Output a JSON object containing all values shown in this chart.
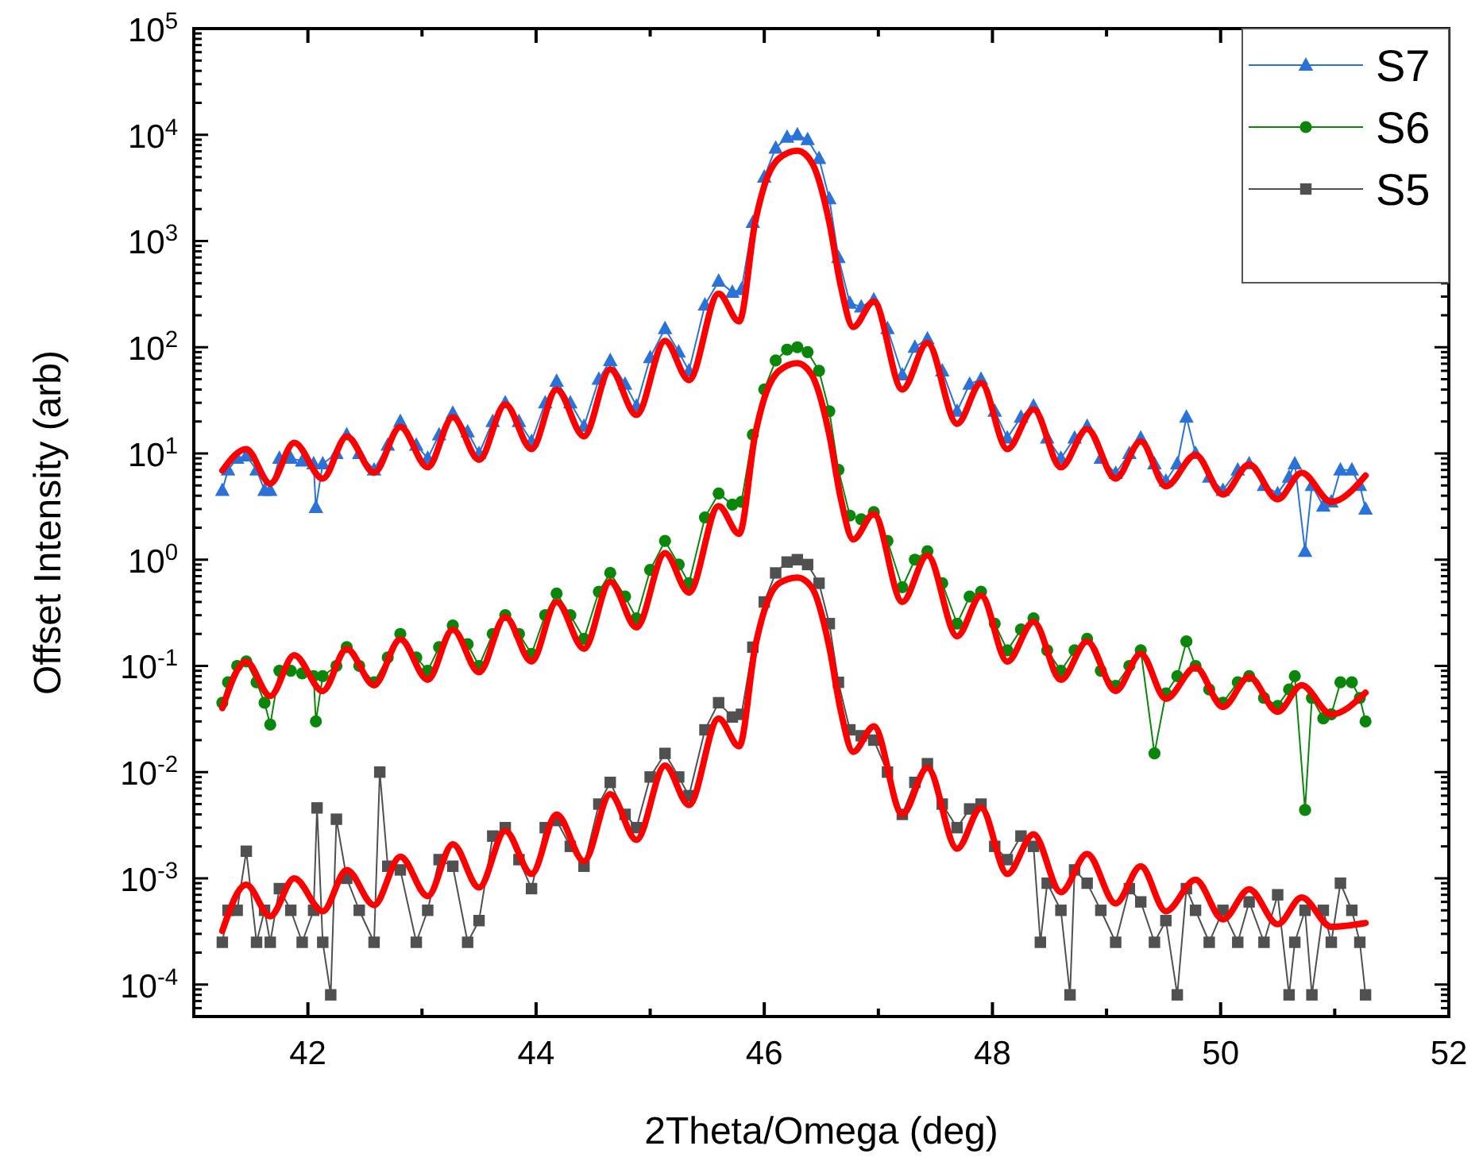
{
  "chart_data": {
    "type": "line",
    "xlabel": "2Theta/Omega (deg)",
    "ylabel": "Offset Intensity (arb)",
    "log": "y",
    "legend": "top right",
    "xlim": [
      41,
      52
    ],
    "ylim": [
      5e-05,
      100000.0
    ],
    "xticks": [
      42,
      {
        "value": 43,
        "label": null
      },
      44,
      {
        "value": 45,
        "label": null
      },
      46,
      {
        "value": 47,
        "label": null
      },
      48,
      {
        "value": 49,
        "label": null
      },
      50,
      {
        "value": 51,
        "label": null
      },
      52
    ],
    "yticks": [
      {
        "value": 6e-05,
        "label": null
      },
      {
        "value": 7e-05,
        "label": null
      },
      {
        "value": 8e-05,
        "label": null
      },
      {
        "value": 9e-05,
        "label": null
      },
      {
        "value": 0.0001,
        "label": "10$^{-4}$"
      },
      {
        "value": 0.0002,
        "label": null
      },
      {
        "value": 0.0003,
        "label": null
      },
      {
        "value": 0.0004,
        "label": null
      },
      {
        "value": 0.0005,
        "label": null
      },
      {
        "value": 0.0006,
        "label": null
      },
      {
        "value": 0.0007,
        "label": null
      },
      {
        "value": 0.0008,
        "label": null
      },
      {
        "value": 0.0009,
        "label": null
      },
      {
        "value": 0.001,
        "label": "10$^{-3}$"
      },
      {
        "value": 0.002,
        "label": null
      },
      {
        "value": 0.003,
        "label": null
      },
      {
        "value": 0.004,
        "label": null
      },
      {
        "value": 0.005,
        "label": null
      },
      {
        "value": 0.006,
        "label": null
      },
      {
        "value": 0.007,
        "label": null
      },
      {
        "value": 0.008,
        "label": null
      },
      {
        "value": 0.009,
        "label": null
      },
      {
        "value": 0.01,
        "label": "10$^{-2}$"
      },
      {
        "value": 0.02,
        "label": null
      },
      {
        "value": 0.03,
        "label": null
      },
      {
        "value": 0.04,
        "label": null
      },
      {
        "value": 0.05,
        "label": null
      },
      {
        "value": 0.06,
        "label": null
      },
      {
        "value": 0.07,
        "label": null
      },
      {
        "value": 0.08,
        "label": null
      },
      {
        "value": 0.09,
        "label": null
      },
      {
        "value": 0.1,
        "label": "10$^{-1}$"
      },
      {
        "value": 0.2,
        "label": null
      },
      {
        "value": 0.3,
        "label": null
      },
      {
        "value": 0.4,
        "label": null
      },
      {
        "value": 0.5,
        "label": null
      },
      {
        "value": 0.6,
        "label": null
      },
      {
        "value": 0.7,
        "label": null
      },
      {
        "value": 0.8,
        "label": null
      },
      {
        "value": 0.9,
        "label": null
      },
      {
        "value": 1,
        "label": "10$^{0}$"
      },
      {
        "value": 2,
        "label": null
      },
      {
        "value": 3,
        "label": null
      },
      {
        "value": 4,
        "label": null
      },
      {
        "value": 5,
        "label": null
      },
      {
        "value": 6,
        "label": null
      },
      {
        "value": 7,
        "label": null
      },
      {
        "value": 8,
        "label": null
      },
      {
        "value": 9,
        "label": null
      },
      {
        "value": 10,
        "label": "10$^{1}$"
      },
      {
        "value": 20,
        "label": null
      },
      {
        "value": 30,
        "label": null
      },
      {
        "value": 40,
        "label": null
      },
      {
        "value": 50,
        "label": null
      },
      {
        "value": 60,
        "label": null
      },
      {
        "value": 70,
        "label": null
      },
      {
        "value": 80,
        "label": null
      },
      {
        "value": 90,
        "label": null
      },
      {
        "value": 100,
        "label": "10$^{2}$"
      },
      {
        "value": 200,
        "label": null
      },
      {
        "value": 300,
        "label": null
      },
      {
        "value": 400,
        "label": null
      },
      {
        "value": 500,
        "label": null
      },
      {
        "value": 600,
        "label": null
      },
      {
        "value": 700,
        "label": null
      },
      {
        "value": 800,
        "label": null
      },
      {
        "value": 900,
        "label": null
      },
      {
        "value": 1000,
        "label": "10$^{3}$"
      },
      {
        "value": 2000,
        "label": null
      },
      {
        "value": 3000,
        "label": null
      },
      {
        "value": 4000,
        "label": null
      },
      {
        "value": 5000,
        "label": null
      },
      {
        "value": 6000,
        "label": null
      },
      {
        "value": 7000,
        "label": null
      },
      {
        "value": 8000,
        "label": null
      },
      {
        "value": 9000,
        "label": null
      },
      {
        "value": 10000,
        "label": "10$^{4}$"
      },
      {
        "value": 20000,
        "label": null
      },
      {
        "value": 30000,
        "label": null
      },
      {
        "value": 40000,
        "label": null
      },
      {
        "value": 50000,
        "label": null
      },
      {
        "value": 60000,
        "label": null
      },
      {
        "value": 70000,
        "label": null
      },
      {
        "value": 80000,
        "label": null
      },
      {
        "value": 90000,
        "label": null
      },
      {
        "value": 100000,
        "label": "10$^{5}$"
      }
    ],
    "series": [
      {
        "name": "S7",
        "color": "#2a72d8",
        "marker": "triangle",
        "x": [
          41.25,
          41.3,
          41.38,
          41.46,
          41.55,
          41.62,
          41.67,
          41.75,
          41.85,
          41.95,
          42.05,
          42.07,
          42.13,
          42.25,
          42.34,
          42.45,
          42.58,
          42.7,
          42.81,
          42.95,
          43.05,
          43.15,
          43.27,
          43.4,
          43.5,
          43.62,
          43.73,
          43.85,
          43.96,
          44.08,
          44.18,
          44.3,
          44.42,
          44.55,
          44.65,
          44.78,
          44.88,
          45.0,
          45.13,
          45.25,
          45.34,
          45.48,
          45.6,
          45.72,
          45.8,
          45.9,
          46.0,
          46.1,
          46.2,
          46.29,
          46.38,
          46.48,
          46.57,
          46.65,
          46.75,
          46.85,
          46.96,
          47.08,
          47.21,
          47.32,
          47.43,
          47.56,
          47.69,
          47.8,
          47.9,
          48.02,
          48.13,
          48.25,
          48.36,
          48.48,
          48.6,
          48.72,
          48.83,
          48.95,
          49.08,
          49.2,
          49.3,
          49.42,
          49.52,
          49.62,
          49.7,
          49.78,
          49.9,
          50.02,
          50.15,
          50.25,
          50.38,
          50.5,
          50.6,
          50.65,
          50.74,
          50.8,
          50.9,
          50.97,
          51.05,
          51.15,
          51.22,
          51.27
        ],
        "values": [
          4.5,
          7,
          9,
          9.5,
          7,
          4.5,
          4.5,
          9,
          9,
          8.5,
          8,
          3.1,
          8,
          10,
          15,
          10,
          7,
          12,
          20,
          12,
          9,
          15,
          24,
          16,
          10,
          20,
          30,
          20,
          13,
          30,
          48,
          30,
          18,
          50,
          75,
          45,
          28,
          80,
          150,
          90,
          60,
          250,
          420,
          330,
          350,
          1500,
          4000,
          7500,
          9500,
          10000,
          9000,
          6000,
          2500,
          700,
          260,
          240,
          280,
          150,
          55,
          100,
          120,
          60,
          25,
          45,
          50,
          25,
          14,
          22,
          28,
          14,
          9,
          14,
          18,
          9,
          6.5,
          10,
          14,
          8,
          5.5,
          8,
          22,
          10,
          6,
          4.5,
          7,
          8,
          5,
          4.2,
          6,
          8,
          1.2,
          5,
          3.2,
          3.5,
          7,
          7,
          5,
          3
        ]
      },
      {
        "name": "S6",
        "color": "#0a860a",
        "marker": "circle",
        "x": [
          41.25,
          41.3,
          41.38,
          41.46,
          41.55,
          41.62,
          41.67,
          41.75,
          41.85,
          41.95,
          42.05,
          42.07,
          42.13,
          42.25,
          42.34,
          42.45,
          42.58,
          42.7,
          42.81,
          42.95,
          43.05,
          43.15,
          43.27,
          43.4,
          43.5,
          43.62,
          43.73,
          43.85,
          43.96,
          44.08,
          44.18,
          44.3,
          44.42,
          44.55,
          44.65,
          44.78,
          44.88,
          45.0,
          45.13,
          45.25,
          45.34,
          45.48,
          45.6,
          45.72,
          45.8,
          45.9,
          46.0,
          46.1,
          46.2,
          46.29,
          46.38,
          46.48,
          46.57,
          46.65,
          46.75,
          46.85,
          46.96,
          47.08,
          47.21,
          47.32,
          47.43,
          47.56,
          47.69,
          47.8,
          47.9,
          48.02,
          48.13,
          48.25,
          48.36,
          48.48,
          48.6,
          48.72,
          48.83,
          48.95,
          49.08,
          49.2,
          49.3,
          49.42,
          49.52,
          49.62,
          49.7,
          49.78,
          49.9,
          50.02,
          50.15,
          50.25,
          50.38,
          50.5,
          50.6,
          50.65,
          50.74,
          50.8,
          50.9,
          50.97,
          51.05,
          51.15,
          51.22,
          51.27
        ],
        "values": [
          0.045,
          0.07,
          0.1,
          0.11,
          0.07,
          0.045,
          0.028,
          0.09,
          0.09,
          0.085,
          0.08,
          0.03,
          0.08,
          0.1,
          0.15,
          0.1,
          0.07,
          0.12,
          0.2,
          0.12,
          0.09,
          0.15,
          0.24,
          0.16,
          0.1,
          0.2,
          0.3,
          0.2,
          0.13,
          0.3,
          0.48,
          0.3,
          0.18,
          0.5,
          0.75,
          0.45,
          0.28,
          0.8,
          1.5,
          0.9,
          0.6,
          2.5,
          4.2,
          3.3,
          3.5,
          15,
          40,
          75,
          95,
          100,
          90,
          60,
          25,
          7,
          2.6,
          2.4,
          2.8,
          1.5,
          0.55,
          1,
          1.2,
          0.6,
          0.25,
          0.45,
          0.5,
          0.25,
          0.14,
          0.22,
          0.28,
          0.14,
          0.09,
          0.14,
          0.18,
          0.09,
          0.065,
          0.1,
          0.14,
          0.015,
          0.055,
          0.08,
          0.17,
          0.1,
          0.06,
          0.045,
          0.07,
          0.08,
          0.05,
          0.042,
          0.06,
          0.08,
          0.0044,
          0.05,
          0.032,
          0.035,
          0.07,
          0.07,
          0.05,
          0.03
        ]
      },
      {
        "name": "S5",
        "color": "#505050",
        "marker": "square",
        "x": [
          41.25,
          41.3,
          41.38,
          41.46,
          41.55,
          41.62,
          41.67,
          41.75,
          41.85,
          41.95,
          42.05,
          42.08,
          42.13,
          42.2,
          42.25,
          42.34,
          42.45,
          42.58,
          42.63,
          42.7,
          42.81,
          42.95,
          43.05,
          43.15,
          43.27,
          43.4,
          43.5,
          43.62,
          43.73,
          43.85,
          43.96,
          44.08,
          44.18,
          44.3,
          44.42,
          44.55,
          44.65,
          44.78,
          44.88,
          45.0,
          45.13,
          45.25,
          45.34,
          45.48,
          45.6,
          45.72,
          45.8,
          45.9,
          46.0,
          46.1,
          46.2,
          46.29,
          46.38,
          46.48,
          46.57,
          46.65,
          46.75,
          46.85,
          46.96,
          47.08,
          47.21,
          47.32,
          47.43,
          47.56,
          47.69,
          47.8,
          47.9,
          48.02,
          48.13,
          48.25,
          48.36,
          48.42,
          48.48,
          48.6,
          48.68,
          48.72,
          48.83,
          48.95,
          49.08,
          49.2,
          49.3,
          49.42,
          49.52,
          49.62,
          49.7,
          49.78,
          49.9,
          50.02,
          50.15,
          50.25,
          50.38,
          50.5,
          50.6,
          50.65,
          50.74,
          50.8,
          50.9,
          50.97,
          51.05,
          51.15,
          51.22,
          51.27
        ],
        "values": [
          0.00025,
          0.0005,
          0.0005,
          0.0018,
          0.00025,
          0.0005,
          0.00025,
          0.0008,
          0.0005,
          0.00025,
          0.0005,
          0.0046,
          0.00025,
          8e-05,
          0.0036,
          0.001,
          0.0005,
          0.00025,
          0.01,
          0.0013,
          0.0012,
          0.00025,
          0.0005,
          0.0015,
          0.0013,
          0.00025,
          0.0004,
          0.0025,
          0.003,
          0.0015,
          0.0008,
          0.003,
          0.0035,
          0.002,
          0.0013,
          0.005,
          0.008,
          0.004,
          0.003,
          0.009,
          0.015,
          0.009,
          0.006,
          0.025,
          0.045,
          0.033,
          0.035,
          0.15,
          0.4,
          0.75,
          0.95,
          1,
          0.9,
          0.6,
          0.25,
          0.07,
          0.025,
          0.022,
          0.02,
          0.01,
          0.004,
          0.008,
          0.012,
          0.005,
          0.003,
          0.0045,
          0.005,
          0.002,
          0.0015,
          0.0025,
          0.002,
          0.00025,
          0.0009,
          0.0005,
          8e-05,
          0.0012,
          0.0009,
          0.0005,
          0.00025,
          0.0008,
          0.0006,
          0.00025,
          0.0004,
          8e-05,
          0.0008,
          0.0005,
          0.00025,
          0.0005,
          0.00025,
          0.0006,
          0.00025,
          0.0007,
          8e-05,
          0.00025,
          0.0005,
          8e-05,
          0.0005,
          0.00025,
          0.0009,
          0.0005,
          0.00025,
          8e-05
        ]
      },
      {
        "color": "#ff0000",
        "marker": "none",
        "x": [
          41.25,
          41.46,
          41.67,
          41.88,
          42.13,
          42.34,
          42.58,
          42.81,
          43.05,
          43.27,
          43.5,
          43.73,
          43.96,
          44.18,
          44.42,
          44.65,
          44.88,
          45.13,
          45.34,
          45.6,
          45.78,
          45.92,
          46.0,
          46.13,
          46.29,
          46.42,
          46.57,
          46.67,
          46.78,
          46.96,
          47.21,
          47.43,
          47.69,
          47.9,
          48.13,
          48.36,
          48.6,
          48.83,
          49.08,
          49.3,
          49.52,
          49.78,
          50.02,
          50.25,
          50.5,
          50.71,
          50.97,
          51.27
        ],
        "values": [
          6.9,
          11,
          5.2,
          12.6,
          5.8,
          14.5,
          6.6,
          17.8,
          7.4,
          22,
          8.7,
          29,
          11,
          40,
          14.5,
          62,
          23,
          115,
          49,
          320,
          175,
          1500,
          3300,
          6000,
          7100,
          5400,
          1500,
          380,
          155,
          270,
          40,
          110,
          19,
          46,
          11,
          26,
          7.4,
          17,
          5.8,
          13,
          4.9,
          9.7,
          4.1,
          7.9,
          3.7,
          6.6,
          3.5,
          6.2
        ]
      },
      {
        "color": "#ff0000",
        "marker": "none",
        "x": [
          41.25,
          41.46,
          41.67,
          41.88,
          42.13,
          42.34,
          42.58,
          42.81,
          43.05,
          43.27,
          43.5,
          43.73,
          43.96,
          44.18,
          44.42,
          44.65,
          44.88,
          45.13,
          45.34,
          45.6,
          45.78,
          45.92,
          46.0,
          46.13,
          46.29,
          46.42,
          46.57,
          46.67,
          46.78,
          46.96,
          47.21,
          47.43,
          47.69,
          47.9,
          48.13,
          48.36,
          48.6,
          48.83,
          49.08,
          49.3,
          49.52,
          49.78,
          50.02,
          50.25,
          50.5,
          50.71,
          50.97,
          51.27
        ],
        "values": [
          0.04,
          0.11,
          0.052,
          0.126,
          0.058,
          0.145,
          0.066,
          0.178,
          0.074,
          0.22,
          0.087,
          0.29,
          0.11,
          0.4,
          0.145,
          0.62,
          0.23,
          1.15,
          0.49,
          3.2,
          1.75,
          15,
          33,
          60,
          71,
          54,
          15,
          3.8,
          1.55,
          2.7,
          0.4,
          1.1,
          0.19,
          0.46,
          0.11,
          0.26,
          0.074,
          0.17,
          0.058,
          0.13,
          0.049,
          0.097,
          0.041,
          0.079,
          0.037,
          0.066,
          0.035,
          0.056
        ]
      },
      {
        "color": "#ff0000",
        "marker": "none",
        "x": [
          41.25,
          41.46,
          41.67,
          41.88,
          42.13,
          42.34,
          42.58,
          42.81,
          43.05,
          43.27,
          43.5,
          43.73,
          43.96,
          44.18,
          44.42,
          44.65,
          44.88,
          45.13,
          45.34,
          45.6,
          45.78,
          45.92,
          46.0,
          46.13,
          46.29,
          46.42,
          46.57,
          46.67,
          46.78,
          46.96,
          47.21,
          47.43,
          47.69,
          47.9,
          48.13,
          48.36,
          48.6,
          48.83,
          49.08,
          49.3,
          49.52,
          49.78,
          50.02,
          50.25,
          50.5,
          50.71,
          50.97,
          51.27
        ],
        "values": [
          0.00032,
          0.00087,
          0.00044,
          0.001,
          0.00049,
          0.0012,
          0.00056,
          0.0016,
          0.00068,
          0.0021,
          0.00082,
          0.0028,
          0.0011,
          0.004,
          0.00145,
          0.0062,
          0.0023,
          0.0115,
          0.0049,
          0.032,
          0.0175,
          0.15,
          0.33,
          0.6,
          0.68,
          0.54,
          0.15,
          0.038,
          0.0155,
          0.027,
          0.004,
          0.011,
          0.0019,
          0.0046,
          0.0011,
          0.0026,
          0.00074,
          0.0017,
          0.00058,
          0.0013,
          0.00049,
          0.00097,
          0.00041,
          0.00079,
          0.00037,
          0.00066,
          0.00035,
          0.00038
        ]
      }
    ]
  }
}
